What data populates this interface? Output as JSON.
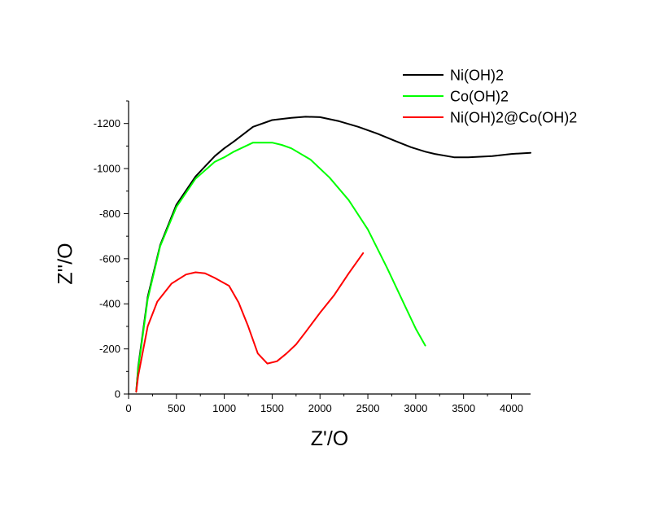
{
  "chart_data": {
    "type": "line",
    "title": "",
    "xlabel": "Z'/O",
    "ylabel": "Z''/O",
    "xlim": [
      0,
      4200
    ],
    "ylim": [
      0,
      -1300
    ],
    "xticks": [
      0,
      500,
      1000,
      1500,
      2000,
      2500,
      3000,
      3500,
      4000
    ],
    "yticks": [
      0,
      -200,
      -400,
      -600,
      -800,
      -1000,
      -1200
    ],
    "grid": false,
    "legend_position": "top-right",
    "series": [
      {
        "name": "Ni(OH)2",
        "color": "#000000",
        "x": [
          80,
          100,
          200,
          330,
          500,
          700,
          900,
          1000,
          1100,
          1300,
          1500,
          1700,
          1850,
          2000,
          2200,
          2400,
          2600,
          2800,
          2950,
          3100,
          3200,
          3400,
          3550,
          3800,
          4000,
          4200
        ],
        "y": [
          -10,
          -120,
          -430,
          -660,
          -840,
          -965,
          -1055,
          -1090,
          -1120,
          -1185,
          -1215,
          -1225,
          -1230,
          -1228,
          -1210,
          -1185,
          -1155,
          -1120,
          -1095,
          -1075,
          -1065,
          -1050,
          -1050,
          -1055,
          -1065,
          -1070
        ]
      },
      {
        "name": "Co(OH)2",
        "color": "#00ff00",
        "x": [
          80,
          100,
          200,
          330,
          500,
          700,
          900,
          1000,
          1100,
          1300,
          1500,
          1600,
          1700,
          1900,
          2100,
          2300,
          2500,
          2700,
          2900,
          3000,
          3100
        ],
        "y": [
          -10,
          -110,
          -420,
          -655,
          -830,
          -955,
          -1030,
          -1050,
          -1075,
          -1115,
          -1115,
          -1105,
          -1090,
          -1040,
          -960,
          -860,
          -730,
          -560,
          -380,
          -290,
          -215
        ]
      },
      {
        "name": "Ni(OH)2@Co(OH)2",
        "color": "#ff0000",
        "x": [
          80,
          100,
          200,
          300,
          450,
          600,
          700,
          800,
          900,
          1050,
          1150,
          1250,
          1350,
          1450,
          1550,
          1650,
          1750,
          1850,
          2000,
          2150,
          2300,
          2450
        ],
        "y": [
          -10,
          -80,
          -300,
          -410,
          -490,
          -530,
          -540,
          -535,
          -515,
          -480,
          -405,
          -300,
          -180,
          -135,
          -145,
          -180,
          -220,
          -275,
          -360,
          -440,
          -535,
          -625
        ]
      }
    ]
  }
}
